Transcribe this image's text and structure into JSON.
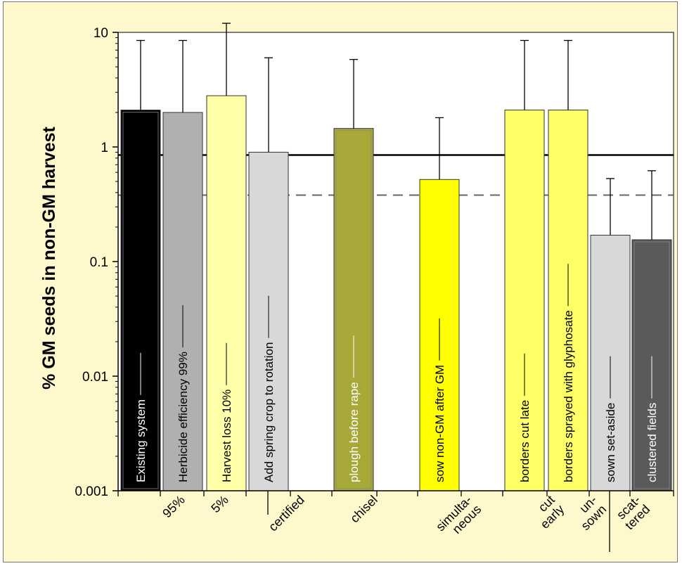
{
  "chart_data": {
    "type": "bar",
    "title": "",
    "ylabel": "% GM seeds in non-GM harvest",
    "yscale": "log",
    "ylim": [
      0.001,
      10
    ],
    "yticks": [
      {
        "value": 10,
        "label": "10"
      },
      {
        "value": 1,
        "label": "1"
      },
      {
        "value": 0.1,
        "label": "0.1"
      },
      {
        "value": 0.01,
        "label": "0.01"
      },
      {
        "value": 0.001,
        "label": "0.001"
      }
    ],
    "reference_lines": [
      {
        "value": 0.85,
        "style": "solid"
      },
      {
        "value": 0.38,
        "style": "dashed"
      }
    ],
    "bars": [
      {
        "label": "Existing system",
        "value": 2.1,
        "error_upper": 8.5,
        "color": "#000000",
        "text_color": "#ffffff"
      },
      {
        "label": "Herbicide efficiency 99%",
        "value": 2.0,
        "error_upper": 8.5,
        "color": "#b0b0b0",
        "text_color": "#000000"
      },
      {
        "label": "Harvest loss 10%",
        "value": 2.8,
        "error_upper": 12.0,
        "color": "#ffffa8",
        "text_color": "#000000"
      },
      {
        "label": "Add spring crop to rotation",
        "value": 0.9,
        "error_upper": 6.0,
        "color": "#d8d8d8",
        "text_color": "#000000"
      },
      {
        "label": "plough before rape",
        "value": 1.45,
        "error_upper": 5.8,
        "color": "#a8a838",
        "text_color": "#ffffff"
      },
      {
        "label": "sow non-GM after GM",
        "value": 0.52,
        "error_upper": 1.8,
        "color": "#ffff00",
        "text_color": "#000000"
      },
      {
        "label": "borders cut late",
        "value": 2.1,
        "error_upper": 8.5,
        "color": "#ffff66",
        "text_color": "#000000"
      },
      {
        "label": "borders sprayed with glyphosate",
        "value": 2.1,
        "error_upper": 8.5,
        "color": "#ffff66",
        "text_color": "#000000"
      },
      {
        "label": "sown set-aside",
        "value": 0.17,
        "error_upper": 0.53,
        "color": "#d8d8d8",
        "text_color": "#000000"
      },
      {
        "label": "clustered fields",
        "value": 0.155,
        "error_upper": 0.62,
        "color": "#5a5a5a",
        "text_color": "#ffffff"
      }
    ],
    "alternative_labels": [
      {
        "text": "95%"
      },
      {
        "text": "5%"
      },
      {
        "text": "certified"
      },
      {
        "text": "chisel"
      },
      {
        "text": "simulta-neous"
      },
      {
        "text": "cut early"
      },
      {
        "text": "un-sown"
      },
      {
        "text": "scat-tered"
      }
    ]
  }
}
